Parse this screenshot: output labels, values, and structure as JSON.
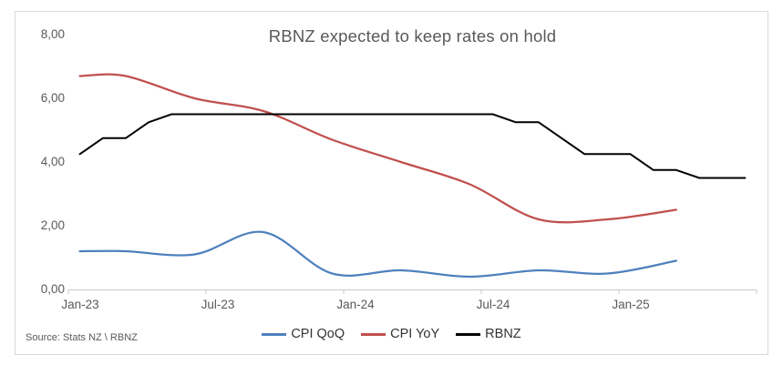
{
  "chart": {
    "title": "RBNZ expected to keep rates on hold",
    "source": "Source: Stats NZ \\ RBNZ"
  },
  "chart_data": {
    "type": "line",
    "title": "RBNZ expected to keep rates on hold",
    "source": "Source: Stats NZ \\ RBNZ",
    "grid": false,
    "legend_position": "bottom-center",
    "number_format": "decimal-comma",
    "ylim": [
      0,
      8
    ],
    "y_axis_tick_labels": [
      "0,00",
      "2,00",
      "4,00",
      "6,00",
      "8,00"
    ],
    "x_axis_tick_labels": [
      "Jan-23",
      "Jul-23",
      "Jan-24",
      "Jul-24",
      "Jan-25"
    ],
    "x_categories": [
      "Jan-23",
      "Feb-23",
      "Mar-23",
      "Apr-23",
      "May-23",
      "Jun-23",
      "Jul-23",
      "Aug-23",
      "Sep-23",
      "Oct-23",
      "Nov-23",
      "Dec-23",
      "Jan-24",
      "Feb-24",
      "Mar-24",
      "Apr-24",
      "May-24",
      "Jun-24",
      "Jul-24",
      "Aug-24",
      "Sep-24",
      "Oct-24",
      "Nov-24",
      "Dec-24",
      "Jan-25",
      "Feb-25",
      "Mar-25",
      "Apr-25",
      "May-25",
      "Jun-25"
    ],
    "series": [
      {
        "name": "CPI QoQ",
        "color": "#4F81BD",
        "smooth": true,
        "points": {
          "Jan-23": 1.2,
          "Mar-23": 1.2,
          "Jun-23": 1.1,
          "Sep-23": 1.8,
          "Dec-23": 0.5,
          "Mar-24": 0.6,
          "Jun-24": 0.4,
          "Sep-24": 0.6,
          "Dec-24": 0.5,
          "Mar-25": 0.9
        }
      },
      {
        "name": "CPI YoY",
        "color": "#C0504D",
        "smooth": true,
        "points": {
          "Jan-23": 6.7,
          "Mar-23": 6.7,
          "Jun-23": 6.0,
          "Sep-23": 5.6,
          "Dec-23": 4.7,
          "Mar-24": 4.0,
          "Jun-24": 3.3,
          "Sep-24": 2.2,
          "Dec-24": 2.2,
          "Mar-25": 2.5
        }
      },
      {
        "name": "RBNZ",
        "color": "#000000",
        "smooth": false,
        "points": {
          "Jan-23": 4.25,
          "Feb-23": 4.75,
          "Mar-23": 4.75,
          "Apr-23": 5.25,
          "May-23": 5.5,
          "Jun-23": 5.5,
          "Jul-23": 5.5,
          "Aug-23": 5.5,
          "Sep-23": 5.5,
          "Oct-23": 5.5,
          "Nov-23": 5.5,
          "Dec-23": 5.5,
          "Jan-24": 5.5,
          "Feb-24": 5.5,
          "Mar-24": 5.5,
          "Apr-24": 5.5,
          "May-24": 5.5,
          "Jun-24": 5.5,
          "Jul-24": 5.5,
          "Aug-24": 5.25,
          "Sep-24": 5.25,
          "Oct-24": 4.75,
          "Nov-24": 4.25,
          "Dec-24": 4.25,
          "Jan-25": 4.25,
          "Feb-25": 3.75,
          "Mar-25": 3.75,
          "Apr-25": 3.5,
          "May-25": 3.5,
          "Jun-25": 3.5
        }
      }
    ]
  }
}
